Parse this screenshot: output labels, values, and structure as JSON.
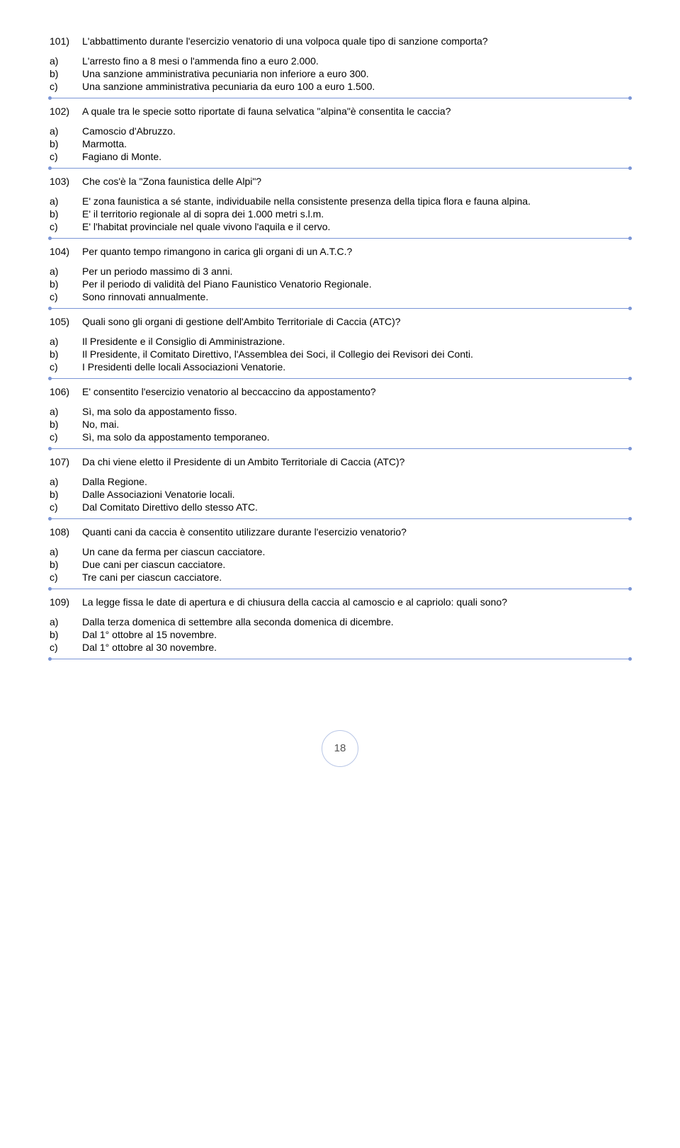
{
  "pageNumber": "18",
  "questions": [
    {
      "num": "101)",
      "text": "L'abbattimento durante l'esercizio venatorio di una volpoca quale tipo di sanzione comporta?",
      "options": [
        {
          "label": "a)",
          "text": "L'arresto fino a 8 mesi o l'ammenda fino a euro 2.000."
        },
        {
          "label": "b)",
          "text": "Una sanzione amministrativa pecuniaria non inferiore a euro 300."
        },
        {
          "label": "c)",
          "text": "Una sanzione amministrativa pecuniaria da euro 100 a euro 1.500."
        }
      ]
    },
    {
      "num": "102)",
      "text": "A quale tra le specie sotto riportate di fauna selvatica \"alpina\"è consentita le caccia?",
      "options": [
        {
          "label": "a)",
          "text": "Camoscio d'Abruzzo."
        },
        {
          "label": "b)",
          "text": "Marmotta."
        },
        {
          "label": "c)",
          "text": "Fagiano di Monte."
        }
      ]
    },
    {
      "num": "103)",
      "text": "Che cos'è la \"Zona faunistica delle Alpi\"?",
      "options": [
        {
          "label": "a)",
          "text": "E' zona faunistica a sé stante, individuabile nella consistente presenza della tipica flora e fauna alpina."
        },
        {
          "label": "b)",
          "text": "E' il territorio regionale al di sopra dei 1.000 metri s.l.m."
        },
        {
          "label": "c)",
          "text": "E' l'habitat provinciale nel quale vivono l'aquila e il cervo."
        }
      ]
    },
    {
      "num": "104)",
      "text": "Per quanto tempo rimangono in carica gli organi di un A.T.C.?",
      "options": [
        {
          "label": "a)",
          "text": "Per un periodo massimo di 3 anni."
        },
        {
          "label": "b)",
          "text": "Per il periodo di validità del Piano Faunistico Venatorio Regionale."
        },
        {
          "label": "c)",
          "text": "Sono rinnovati annualmente."
        }
      ]
    },
    {
      "num": "105)",
      "text": "Quali sono gli organi di gestione dell'Ambito Territoriale di Caccia (ATC)?",
      "options": [
        {
          "label": "a)",
          "text": "Il Presidente e il Consiglio di Amministrazione."
        },
        {
          "label": "b)",
          "text": "Il Presidente, il Comitato Direttivo, l'Assemblea dei Soci, il Collegio dei Revisori dei Conti."
        },
        {
          "label": "c)",
          "text": "I Presidenti delle locali Associazioni Venatorie."
        }
      ]
    },
    {
      "num": "106)",
      "text": "E' consentito l'esercizio venatorio al beccaccino da appostamento?",
      "options": [
        {
          "label": "a)",
          "text": "Sì, ma solo da appostamento fisso."
        },
        {
          "label": "b)",
          "text": "No, mai."
        },
        {
          "label": "c)",
          "text": "Sì, ma solo da appostamento temporaneo."
        }
      ]
    },
    {
      "num": "107)",
      "text": "Da chi viene eletto il Presidente di un Ambito Territoriale di Caccia (ATC)?",
      "options": [
        {
          "label": "a)",
          "text": "Dalla Regione."
        },
        {
          "label": "b)",
          "text": "Dalle Associazioni Venatorie locali."
        },
        {
          "label": "c)",
          "text": "Dal Comitato Direttivo dello stesso ATC."
        }
      ]
    },
    {
      "num": "108)",
      "text": "Quanti cani da caccia è consentito utilizzare durante l'esercizio venatorio?",
      "options": [
        {
          "label": "a)",
          "text": "Un cane da ferma per ciascun cacciatore."
        },
        {
          "label": "b)",
          "text": "Due cani per ciascun cacciatore."
        },
        {
          "label": "c)",
          "text": "Tre cani per ciascun cacciatore."
        }
      ]
    },
    {
      "num": "109)",
      "text": "La legge fissa le date di apertura e di chiusura della caccia al camoscio e al capriolo: quali sono?",
      "options": [
        {
          "label": "a)",
          "text": "Dalla terza domenica di settembre alla seconda domenica di dicembre."
        },
        {
          "label": "b)",
          "text": "Dal 1° ottobre al 15 novembre."
        },
        {
          "label": "c)",
          "text": "Dal 1° ottobre al 30 novembre."
        }
      ]
    }
  ]
}
